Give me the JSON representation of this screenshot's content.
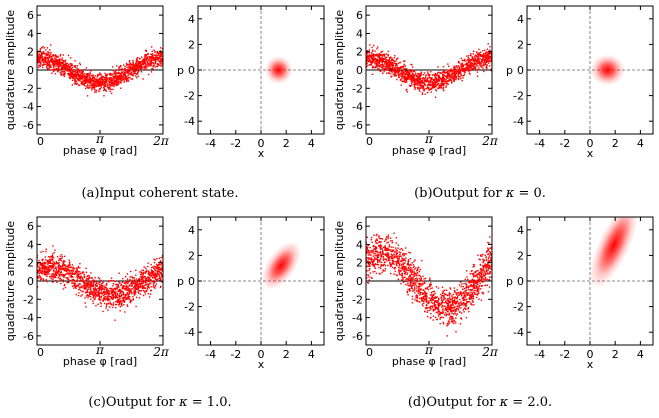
{
  "figure": {
    "captions": [
      {
        "label": "(a)",
        "text": "Input coherent state."
      },
      {
        "label": "(b)",
        "text": "Output for ",
        "symbol": "κ",
        "rest": " = 0."
      },
      {
        "label": "(c)",
        "text": "Output for ",
        "symbol": "κ",
        "rest": " = 1.0."
      },
      {
        "label": "(d)",
        "text": "Output for ",
        "symbol": "κ",
        "rest": " = 2.0."
      }
    ]
  },
  "chart_data": [
    {
      "panel": "a",
      "quadrature_plot": {
        "type": "scatter",
        "xlabel": "phase φ [rad]",
        "ylabel": "quadrature amplitude",
        "xticks": [
          "0",
          "π",
          "2π"
        ],
        "yticks": [
          "6",
          "4",
          "2",
          "0",
          "-2",
          "-4",
          "-6"
        ],
        "xlim": [
          0,
          6.2832
        ],
        "ylim": [
          -7,
          7
        ],
        "curve": {
          "mean": 0,
          "amplitude": 1.4,
          "min_at_phase": 3.1416,
          "spread": 0.5
        },
        "color": "#ff0000"
      },
      "phase_space_plot": {
        "type": "heatmap",
        "xlabel": "x",
        "ylabel": "p",
        "xticks": [
          "-4",
          "-2",
          "0",
          "2",
          "4"
        ],
        "yticks": [
          "4",
          "2",
          "0",
          "-2",
          "-4"
        ],
        "xlim": [
          -5,
          5
        ],
        "ylim": [
          -5,
          5
        ],
        "center": [
          1.4,
          0
        ],
        "sigma_major": 0.5,
        "sigma_minor": 0.5,
        "angle_deg": 0,
        "color": "#ff0000"
      }
    },
    {
      "panel": "b",
      "quadrature_plot": {
        "type": "scatter",
        "xlabel": "phase φ [rad]",
        "ylabel": "quadrature amplitude",
        "xticks": [
          "0",
          "π",
          "2π"
        ],
        "yticks": [
          "6",
          "4",
          "2",
          "0",
          "-2",
          "-4",
          "-6"
        ],
        "xlim": [
          0,
          6.2832
        ],
        "ylim": [
          -7,
          7
        ],
        "curve": {
          "mean": 0,
          "amplitude": 1.4,
          "min_at_phase": 3.1416,
          "spread": 0.55
        },
        "color": "#ff0000"
      },
      "phase_space_plot": {
        "type": "heatmap",
        "xlabel": "x",
        "ylabel": "p",
        "xticks": [
          "-4",
          "-2",
          "0",
          "2",
          "4"
        ],
        "yticks": [
          "4",
          "2",
          "0",
          "-2",
          "-4"
        ],
        "xlim": [
          -5,
          5
        ],
        "ylim": [
          -5,
          5
        ],
        "center": [
          1.4,
          0
        ],
        "sigma_major": 0.62,
        "sigma_minor": 0.55,
        "angle_deg": 0,
        "color": "#ff0000"
      }
    },
    {
      "panel": "c",
      "quadrature_plot": {
        "type": "scatter",
        "xlabel": "phase φ [rad]",
        "ylabel": "quadrature amplitude",
        "xticks": [
          "0",
          "π",
          "2π"
        ],
        "yticks": [
          "6",
          "4",
          "2",
          "0",
          "-2",
          "-4",
          "-6"
        ],
        "xlim": [
          0,
          6.2832
        ],
        "ylim": [
          -7,
          7
        ],
        "curve": {
          "mean": 0,
          "amplitude": 1.6,
          "min_at_phase": 3.8,
          "spread": 0.75
        },
        "color": "#ff0000"
      },
      "phase_space_plot": {
        "type": "heatmap",
        "xlabel": "x",
        "ylabel": "p",
        "xticks": [
          "-4",
          "-2",
          "0",
          "2",
          "4"
        ],
        "yticks": [
          "4",
          "2",
          "0",
          "-2",
          "-4"
        ],
        "xlim": [
          -5,
          5
        ],
        "ylim": [
          -5,
          5
        ],
        "center": [
          1.6,
          1.2
        ],
        "sigma_major": 1.0,
        "sigma_minor": 0.5,
        "angle_deg": 55,
        "color": "#ff0000"
      }
    },
    {
      "panel": "d",
      "quadrature_plot": {
        "type": "scatter",
        "xlabel": "phase φ [rad]",
        "ylabel": "quadrature amplitude",
        "xticks": [
          "0",
          "π",
          "2π"
        ],
        "yticks": [
          "6",
          "4",
          "2",
          "0",
          "-2",
          "-4",
          "-6"
        ],
        "xlim": [
          0,
          6.2832
        ],
        "ylim": [
          -7,
          7
        ],
        "curve": {
          "mean": 0,
          "amplitude": 3.0,
          "min_at_phase": 4.0,
          "spread": 1.0
        },
        "color": "#ff0000"
      },
      "phase_space_plot": {
        "type": "heatmap",
        "xlabel": "x",
        "ylabel": "p",
        "xticks": [
          "-4",
          "-2",
          "0",
          "2",
          "4"
        ],
        "yticks": [
          "4",
          "2",
          "0",
          "-2",
          "-4"
        ],
        "xlim": [
          -5,
          5
        ],
        "ylim": [
          -5,
          5
        ],
        "center": [
          1.9,
          2.8
        ],
        "sigma_major": 1.7,
        "sigma_minor": 0.55,
        "angle_deg": 65,
        "color": "#ff0000"
      }
    }
  ]
}
